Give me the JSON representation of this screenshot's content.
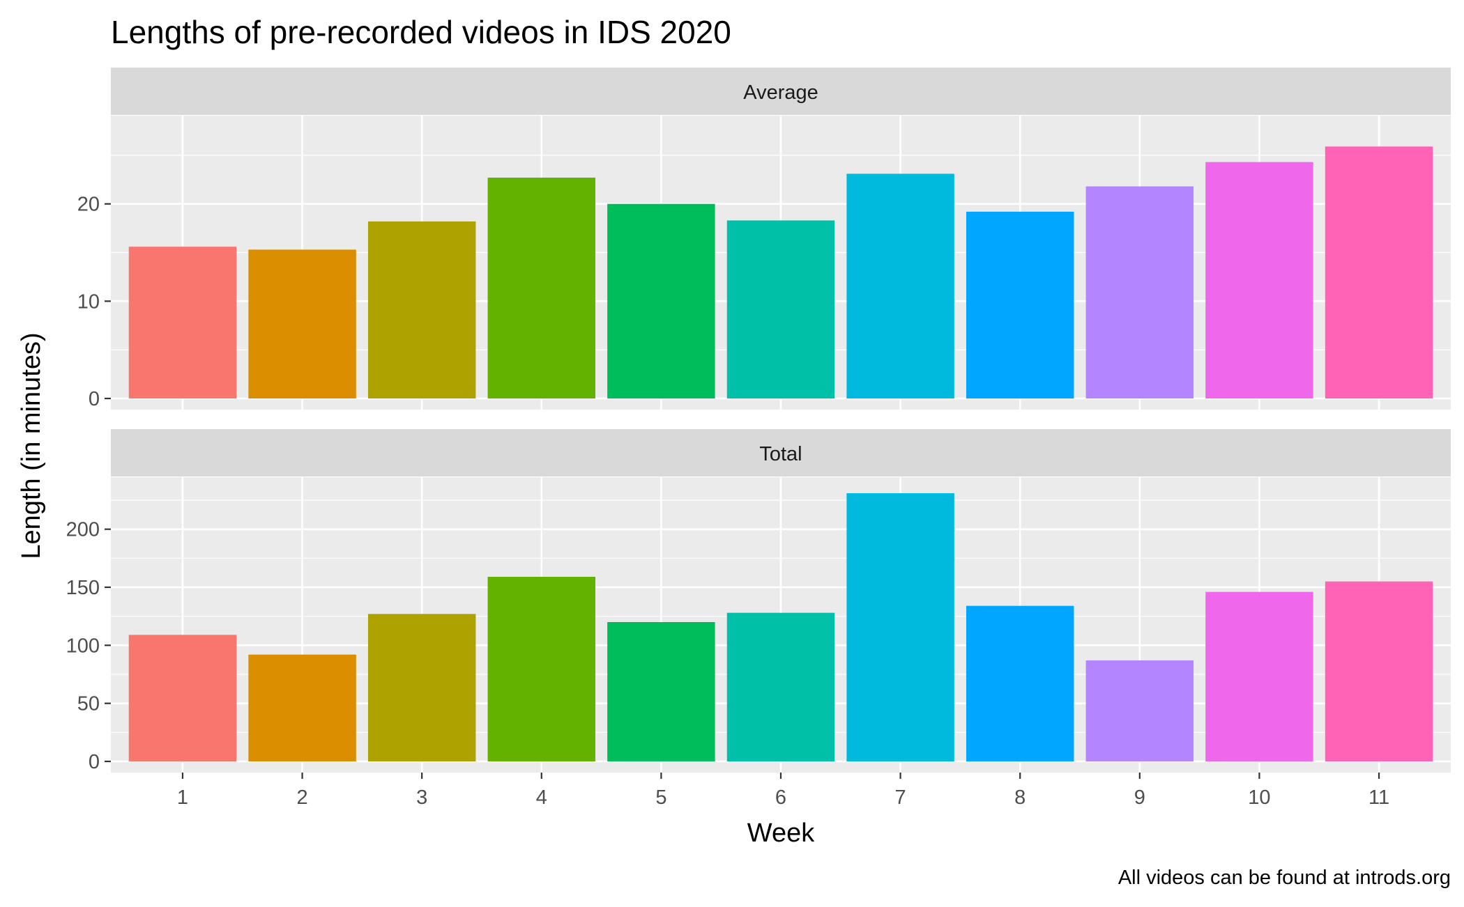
{
  "chart_data": {
    "type": "bar",
    "title": "Lengths of pre-recorded videos in  IDS 2020",
    "xlabel": "Week",
    "ylabel": "Length (in minutes)",
    "caption": "All videos can be found at introds.org",
    "categories": [
      "1",
      "2",
      "3",
      "4",
      "5",
      "6",
      "7",
      "8",
      "9",
      "10",
      "11"
    ],
    "colors": [
      "#F8766D",
      "#DB8E00",
      "#AEA200",
      "#64B200",
      "#00BD5C",
      "#00C1A7",
      "#00BADE",
      "#00A6FF",
      "#B385FF",
      "#EF67EB",
      "#FF63B6"
    ],
    "grid": true,
    "legend": "none",
    "facets": [
      {
        "name": "Average",
        "values": [
          15.6,
          15.3,
          18.2,
          22.7,
          20.0,
          18.3,
          23.1,
          19.2,
          21.8,
          24.3,
          25.9
        ],
        "ylim": [
          0,
          28.5
        ],
        "yticks": [
          0,
          10,
          20
        ]
      },
      {
        "name": "Total",
        "values": [
          109,
          92,
          127,
          159,
          120,
          128,
          231,
          134,
          87,
          146,
          155
        ],
        "ylim": [
          0,
          240
        ],
        "yticks": [
          0,
          50,
          100,
          150,
          200
        ]
      }
    ]
  }
}
